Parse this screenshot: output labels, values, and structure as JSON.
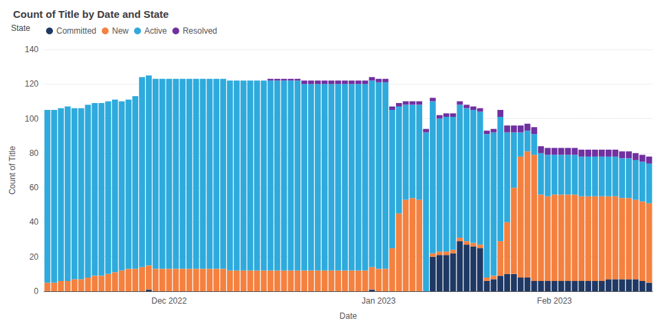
{
  "chart_data": {
    "type": "bar",
    "title": "Count of Title by Date and State",
    "xlabel": "Date",
    "ylabel": "Count of Title",
    "legend_title": "State",
    "stacked": true,
    "grid": true,
    "legend": "upper left",
    "ylim": [
      0,
      140
    ],
    "yticks": [
      0,
      20,
      40,
      60,
      80,
      100,
      120,
      140
    ],
    "categories": [
      null,
      null,
      null,
      null,
      null,
      null,
      null,
      null,
      null,
      null,
      null,
      null,
      null,
      null,
      null,
      null,
      null,
      null,
      "Dec 2022",
      null,
      null,
      null,
      null,
      null,
      null,
      null,
      null,
      null,
      null,
      null,
      null,
      null,
      null,
      null,
      null,
      null,
      null,
      null,
      null,
      null,
      null,
      null,
      null,
      null,
      null,
      null,
      null,
      null,
      null,
      "Jan 2023",
      null,
      null,
      null,
      null,
      null,
      null,
      null,
      null,
      null,
      null,
      null,
      null,
      null,
      null,
      null,
      null,
      null,
      null,
      null,
      null,
      null,
      null,
      null,
      null,
      null,
      "Feb 2023",
      null,
      null,
      null,
      null,
      null,
      null,
      null,
      null,
      null,
      null,
      null,
      null,
      null,
      null
    ],
    "series": [
      {
        "name": "Committed",
        "color": "#1f3864",
        "values": [
          0,
          0,
          0,
          0,
          0,
          0,
          0,
          0,
          0,
          0,
          0,
          0,
          0,
          0,
          0,
          1,
          0,
          0,
          0,
          0,
          0,
          0,
          0,
          0,
          0,
          0,
          0,
          0,
          0,
          0,
          0,
          0,
          0,
          0,
          0,
          0,
          0,
          0,
          0,
          0,
          0,
          0,
          0,
          0,
          0,
          0,
          0,
          0,
          1,
          0,
          0,
          0,
          0,
          0,
          0,
          0,
          0,
          20,
          21,
          21,
          22,
          29,
          27,
          26,
          25,
          6,
          7,
          9,
          10,
          10,
          8,
          8,
          6,
          6,
          6,
          6,
          6,
          6,
          6,
          6,
          6,
          6,
          6,
          7,
          7,
          7,
          7,
          7,
          6,
          5
        ]
      },
      {
        "name": "New",
        "color": "#f4813f",
        "values": [
          5,
          5,
          6,
          6,
          7,
          7,
          8,
          9,
          9,
          10,
          11,
          12,
          13,
          13,
          14,
          14,
          13,
          13,
          13,
          13,
          13,
          13,
          13,
          13,
          13,
          13,
          13,
          12,
          12,
          12,
          12,
          12,
          12,
          12,
          12,
          12,
          12,
          12,
          12,
          12,
          12,
          12,
          12,
          12,
          12,
          12,
          12,
          12,
          13,
          13,
          13,
          25,
          45,
          53,
          54,
          53,
          0,
          2,
          2,
          2,
          2,
          2,
          2,
          2,
          2,
          2,
          2,
          20,
          30,
          50,
          70,
          73,
          73,
          50,
          49,
          50,
          50,
          50,
          50,
          49,
          49,
          49,
          49,
          48,
          48,
          47,
          47,
          46,
          46,
          46
        ]
      },
      {
        "name": "Active",
        "color": "#2eaadc",
        "values": [
          100,
          100,
          100,
          101,
          99,
          99,
          100,
          100,
          100,
          100,
          100,
          98,
          98,
          100,
          110,
          110,
          110,
          110,
          110,
          110,
          110,
          110,
          110,
          110,
          110,
          110,
          110,
          110,
          110,
          110,
          110,
          110,
          110,
          110,
          110,
          110,
          110,
          110,
          108,
          108,
          108,
          108,
          108,
          108,
          108,
          108,
          108,
          108,
          108,
          108,
          108,
          80,
          62,
          55,
          54,
          55,
          92,
          88,
          77,
          78,
          77,
          77,
          77,
          77,
          77,
          83,
          83,
          72,
          52,
          32,
          14,
          12,
          12,
          24,
          24,
          23,
          23,
          23,
          23,
          23,
          23,
          23,
          23,
          23,
          23,
          23,
          23,
          23,
          23,
          23
        ]
      },
      {
        "name": "Resolved",
        "color": "#7030a0",
        "values": [
          0,
          0,
          0,
          0,
          0,
          0,
          0,
          0,
          0,
          0,
          0,
          0,
          0,
          0,
          0,
          0,
          0,
          0,
          0,
          0,
          0,
          0,
          0,
          0,
          0,
          0,
          0,
          0,
          0,
          0,
          0,
          0,
          0,
          1,
          1,
          1,
          1,
          1,
          2,
          2,
          2,
          2,
          2,
          2,
          2,
          2,
          2,
          2,
          2,
          2,
          2,
          2,
          2,
          2,
          2,
          2,
          2,
          2,
          2,
          2,
          2,
          2,
          2,
          2,
          2,
          2,
          2,
          4,
          4,
          4,
          4,
          4,
          4,
          4,
          4,
          4,
          4,
          4,
          4,
          4,
          4,
          4,
          4,
          4,
          4,
          4,
          4,
          4,
          4,
          4
        ]
      }
    ]
  }
}
